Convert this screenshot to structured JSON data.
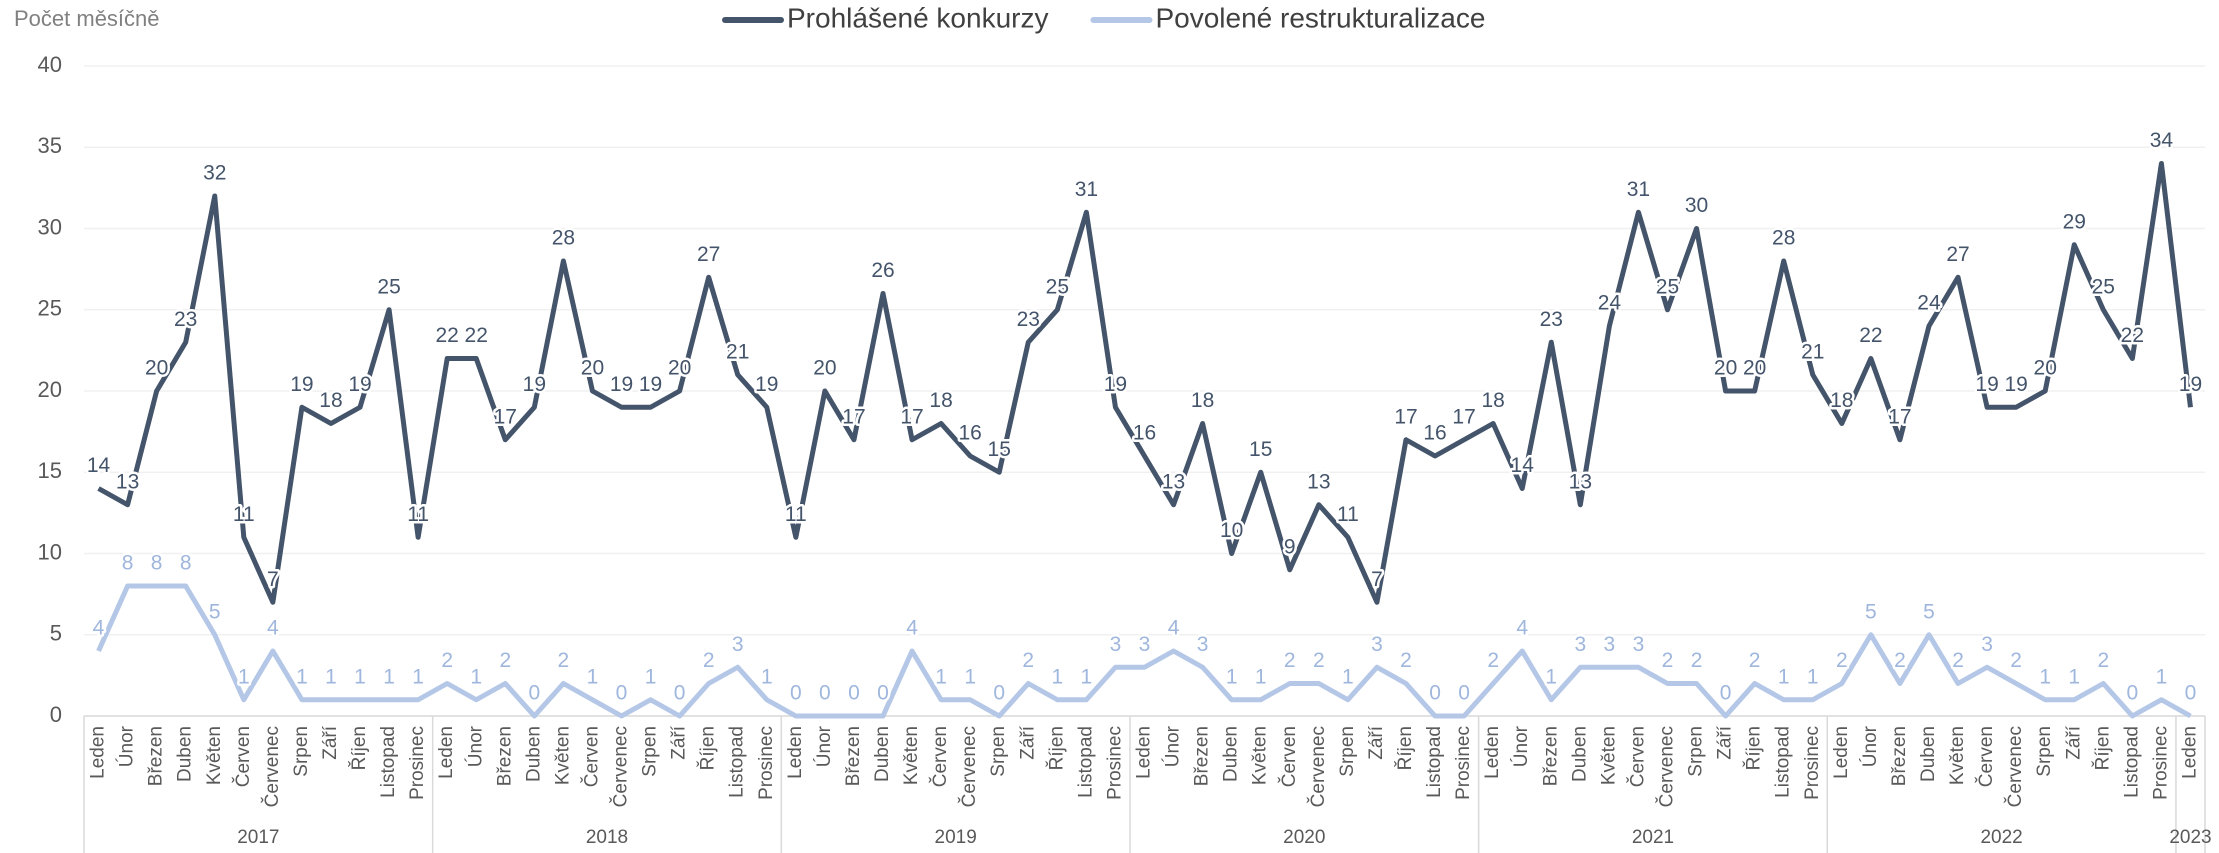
{
  "chart_data": {
    "type": "line",
    "y_axis_label": "Počet měsíčně",
    "categories": [
      "Leden",
      "Únor",
      "Březen",
      "Duben",
      "Květen",
      "Červen",
      "Červenec",
      "Srpen",
      "Září",
      "Říjen",
      "Listopad",
      "Prosinec",
      "Leden",
      "Únor",
      "Březen",
      "Duben",
      "Květen",
      "Červen",
      "Červenec",
      "Srpen",
      "Září",
      "Říjen",
      "Listopad",
      "Prosinec",
      "Leden",
      "Únor",
      "Březen",
      "Duben",
      "Květen",
      "Červen",
      "Červenec",
      "Srpen",
      "Září",
      "Říjen",
      "Listopad",
      "Prosinec",
      "Leden",
      "Únor",
      "Březen",
      "Duben",
      "Květen",
      "Červen",
      "Červenec",
      "Srpen",
      "Září",
      "Říjen",
      "Listopad",
      "Prosinec",
      "Leden",
      "Únor",
      "Březen",
      "Duben",
      "Květen",
      "Červen",
      "Červenec",
      "Srpen",
      "Září",
      "Říjen",
      "Listopad",
      "Prosinec",
      "Leden",
      "Únor",
      "Březen",
      "Duben",
      "Květen",
      "Červen",
      "Červenec",
      "Srpen",
      "Září",
      "Říjen",
      "Listopad",
      "Prosinec",
      "Leden"
    ],
    "year_labels": [
      "2017",
      "2018",
      "2019",
      "2020",
      "2021",
      "2022",
      "2023"
    ],
    "series": [
      {
        "name": "Prohlášené konkurzy",
        "color": "#44546a",
        "values": [
          14,
          13,
          20,
          23,
          32,
          11,
          7,
          19,
          18,
          19,
          25,
          11,
          22,
          22,
          17,
          19,
          28,
          20,
          19,
          19,
          20,
          27,
          21,
          19,
          11,
          20,
          17,
          26,
          17,
          18,
          16,
          15,
          23,
          25,
          31,
          19,
          16,
          13,
          18,
          10,
          15,
          9,
          13,
          11,
          7,
          17,
          16,
          17,
          18,
          14,
          23,
          13,
          24,
          31,
          25,
          30,
          20,
          20,
          28,
          21,
          18,
          22,
          17,
          24,
          27,
          19,
          19,
          20,
          29,
          25,
          22,
          34,
          19
        ]
      },
      {
        "name": "Povolené restrukturalizace",
        "color": "#b4c7e7",
        "values": [
          4,
          8,
          8,
          8,
          5,
          1,
          4,
          1,
          1,
          1,
          1,
          1,
          2,
          1,
          2,
          0,
          2,
          1,
          0,
          1,
          0,
          2,
          3,
          1,
          0,
          0,
          0,
          0,
          4,
          1,
          1,
          0,
          2,
          1,
          1,
          3,
          3,
          4,
          3,
          1,
          1,
          2,
          2,
          1,
          3,
          2,
          0,
          0,
          2,
          4,
          1,
          3,
          3,
          3,
          2,
          2,
          0,
          2,
          1,
          1,
          2,
          5,
          2,
          5,
          2,
          3,
          2,
          1,
          1,
          2,
          0,
          1,
          0
        ]
      }
    ],
    "ylim": [
      0,
      40
    ],
    "yticks": [
      0,
      5,
      10,
      15,
      20,
      25,
      30,
      35,
      40
    ],
    "grid": true
  }
}
